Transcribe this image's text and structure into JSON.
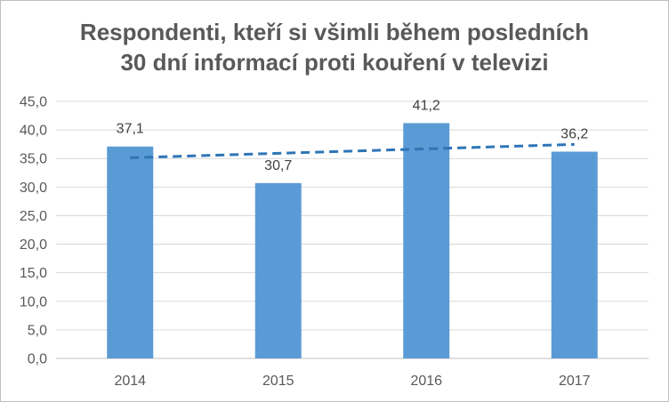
{
  "chart_data": {
    "type": "bar",
    "title_lines": [
      "Respondenti, kteří si všimli během posledních",
      "30 dní informací proti kouření v televizi"
    ],
    "categories": [
      "2014",
      "2015",
      "2016",
      "2017"
    ],
    "values": [
      37.1,
      30.7,
      41.2,
      36.2
    ],
    "data_labels": [
      "37,1",
      "30,7",
      "41,2",
      "36,2"
    ],
    "yticks": [
      "0,0",
      "5,0",
      "10,0",
      "15,0",
      "20,0",
      "25,0",
      "30,0",
      "35,0",
      "40,0",
      "45,0"
    ],
    "ylim": [
      0,
      45
    ],
    "ystep": 5,
    "grid": true,
    "trendline": {
      "type": "linear",
      "style": "dashed"
    },
    "legend": "none",
    "colors": {
      "bar": "#5b9bd5",
      "trendline": "#2e75b6",
      "grid": "#d9d9d9",
      "text": "#595959"
    }
  }
}
